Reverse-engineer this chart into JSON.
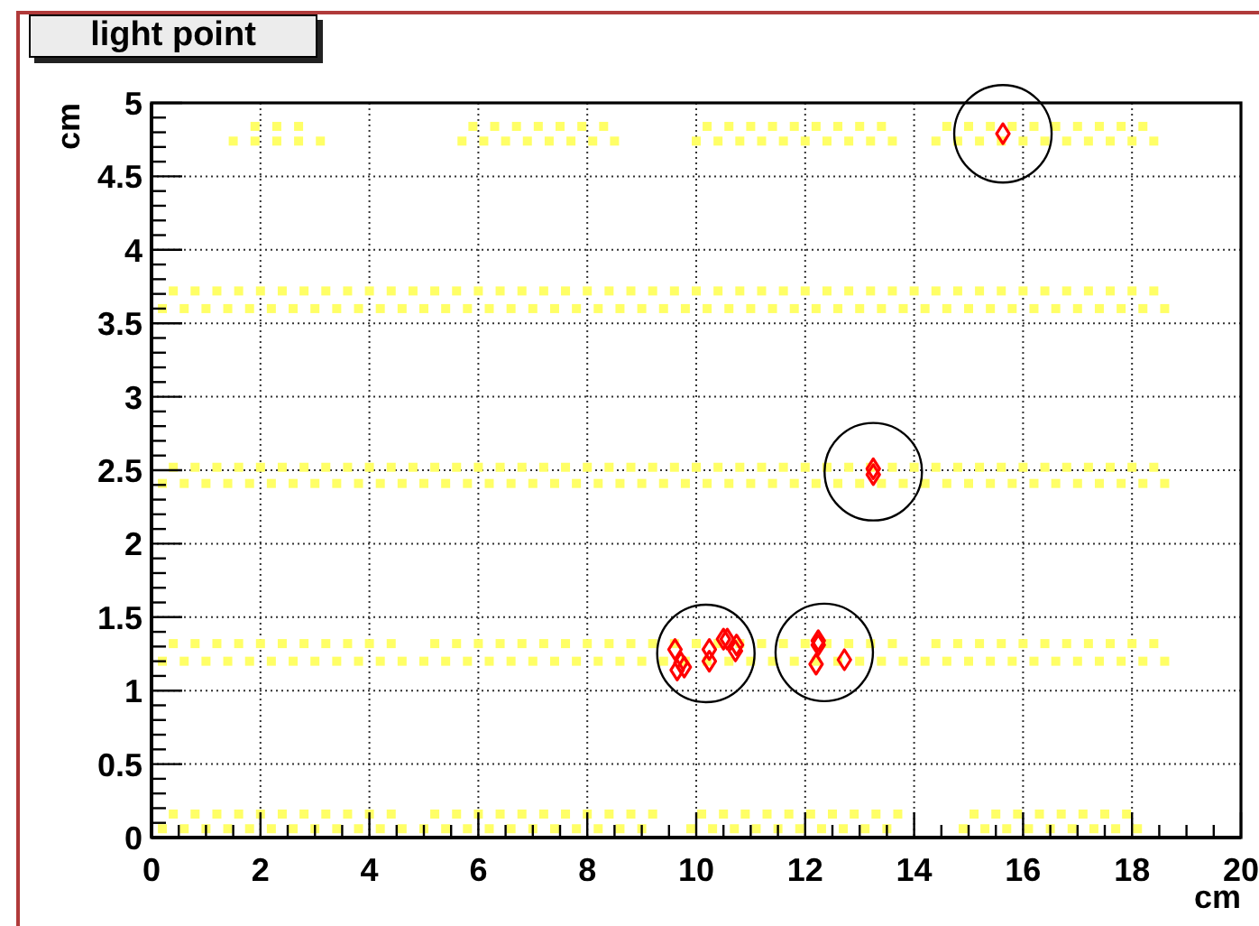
{
  "chart_data": {
    "type": "scatter",
    "title": "light point",
    "xlabel": "cm",
    "ylabel": "cm",
    "xlim": [
      0,
      20
    ],
    "ylim": [
      0,
      5
    ],
    "xticks": [
      0,
      {
        "value": 0.5,
        "label": null
      },
      {
        "value": 1,
        "label": null
      },
      {
        "value": 1.5,
        "label": null
      },
      2,
      {
        "value": 2.5,
        "label": null
      },
      {
        "value": 3,
        "label": null
      },
      {
        "value": 3.5,
        "label": null
      },
      4,
      {
        "value": 4.5,
        "label": null
      },
      {
        "value": 5,
        "label": null
      },
      {
        "value": 5.5,
        "label": null
      },
      6,
      {
        "value": 6.5,
        "label": null
      },
      {
        "value": 7,
        "label": null
      },
      {
        "value": 7.5,
        "label": null
      },
      8,
      {
        "value": 8.5,
        "label": null
      },
      {
        "value": 9,
        "label": null
      },
      {
        "value": 9.5,
        "label": null
      },
      10,
      {
        "value": 10.5,
        "label": null
      },
      {
        "value": 11,
        "label": null
      },
      {
        "value": 11.5,
        "label": null
      },
      12,
      {
        "value": 12.5,
        "label": null
      },
      {
        "value": 13,
        "label": null
      },
      {
        "value": 13.5,
        "label": null
      },
      14,
      {
        "value": 14.5,
        "label": null
      },
      {
        "value": 15,
        "label": null
      },
      {
        "value": 15.5,
        "label": null
      },
      16,
      {
        "value": 16.5,
        "label": null
      },
      {
        "value": 17,
        "label": null
      },
      {
        "value": 17.5,
        "label": null
      },
      18,
      {
        "value": 18.5,
        "label": null
      },
      {
        "value": 19,
        "label": null
      },
      {
        "value": 19.5,
        "label": null
      },
      20
    ],
    "yticks": [
      0,
      {
        "value": 0.1,
        "label": null
      },
      {
        "value": 0.2,
        "label": null
      },
      {
        "value": 0.3,
        "label": null
      },
      {
        "value": 0.4,
        "label": null
      },
      0.5,
      {
        "value": 0.6,
        "label": null
      },
      {
        "value": 0.7,
        "label": null
      },
      {
        "value": 0.8,
        "label": null
      },
      {
        "value": 0.9,
        "label": null
      },
      1,
      {
        "value": 1.1,
        "label": null
      },
      {
        "value": 1.2,
        "label": null
      },
      {
        "value": 1.3,
        "label": null
      },
      {
        "value": 1.4,
        "label": null
      },
      1.5,
      {
        "value": 1.6,
        "label": null
      },
      {
        "value": 1.7,
        "label": null
      },
      {
        "value": 1.8,
        "label": null
      },
      {
        "value": 1.9,
        "label": null
      },
      2,
      {
        "value": 2.1,
        "label": null
      },
      {
        "value": 2.2,
        "label": null
      },
      {
        "value": 2.3,
        "label": null
      },
      {
        "value": 2.4,
        "label": null
      },
      2.5,
      {
        "value": 2.6,
        "label": null
      },
      {
        "value": 2.7,
        "label": null
      },
      {
        "value": 2.8,
        "label": null
      },
      {
        "value": 2.9,
        "label": null
      },
      3,
      {
        "value": 3.1,
        "label": null
      },
      {
        "value": 3.2,
        "label": null
      },
      {
        "value": 3.3,
        "label": null
      },
      {
        "value": 3.4,
        "label": null
      },
      3.5,
      {
        "value": 3.6,
        "label": null
      },
      {
        "value": 3.7,
        "label": null
      },
      {
        "value": 3.8,
        "label": null
      },
      {
        "value": 3.9,
        "label": null
      },
      4,
      {
        "value": 4.1,
        "label": null
      },
      {
        "value": 4.2,
        "label": null
      },
      {
        "value": 4.3,
        "label": null
      },
      {
        "value": 4.4,
        "label": null
      },
      4.5,
      {
        "value": 4.6,
        "label": null
      },
      {
        "value": 4.7,
        "label": null
      },
      {
        "value": 4.8,
        "label": null
      },
      {
        "value": 4.9,
        "label": null
      },
      5
    ],
    "grid": true,
    "series": [
      {
        "color": "#ffff66",
        "marker": "square",
        "x": [
          0.2,
          0.6,
          1,
          1.4,
          1.8,
          2.2,
          2.6,
          3,
          3.4,
          3.8,
          4.2,
          4.6,
          5,
          5.4,
          5.8,
          6.2,
          6.6,
          7,
          7.4,
          7.8,
          8.2,
          8.6,
          9,
          9.9,
          10.3,
          10.7,
          11.1,
          11.5,
          11.9,
          12.3,
          12.7,
          13.1,
          13.5,
          14.9,
          15.3,
          15.7,
          16.1,
          16.5,
          16.9,
          17.3,
          17.7,
          18.1,
          0.4,
          0.8,
          1.2,
          1.6,
          2,
          2.4,
          2.8,
          3.2,
          3.6,
          4,
          4.4,
          5.2,
          5.6,
          6,
          6.4,
          6.8,
          7.2,
          7.6,
          8,
          8.4,
          8.8,
          9.2,
          10.1,
          10.5,
          10.9,
          11.3,
          11.7,
          12.1,
          12.5,
          12.9,
          13.3,
          13.7,
          15.1,
          15.5,
          15.9,
          16.3,
          16.7,
          17.1,
          17.5,
          17.9
        ],
        "values": [
          0.06,
          0.06,
          0.06,
          0.06,
          0.06,
          0.06,
          0.06,
          0.06,
          0.06,
          0.06,
          0.06,
          0.06,
          0.06,
          0.06,
          0.06,
          0.06,
          0.06,
          0.06,
          0.06,
          0.06,
          0.06,
          0.06,
          0.06,
          0.06,
          0.06,
          0.06,
          0.06,
          0.06,
          0.06,
          0.06,
          0.06,
          0.06,
          0.06,
          0.06,
          0.06,
          0.06,
          0.06,
          0.06,
          0.06,
          0.06,
          0.06,
          0.06,
          0.16,
          0.16,
          0.16,
          0.16,
          0.16,
          0.16,
          0.16,
          0.16,
          0.16,
          0.16,
          0.16,
          0.16,
          0.16,
          0.16,
          0.16,
          0.16,
          0.16,
          0.16,
          0.16,
          0.16,
          0.16,
          0.16,
          0.16,
          0.16,
          0.16,
          0.16,
          0.16,
          0.16,
          0.16,
          0.16,
          0.16,
          0.16,
          0.16,
          0.16,
          0.16,
          0.16,
          0.16,
          0.16,
          0.16,
          0.16
        ]
      },
      {
        "color": "#ffff66",
        "marker": "square",
        "x": [
          0.2,
          0.6,
          1,
          1.4,
          1.8,
          2.2,
          2.6,
          3,
          3.4,
          3.8,
          4.2,
          4.6,
          5,
          5.4,
          5.8,
          6.2,
          6.6,
          7,
          7.4,
          7.8,
          8.2,
          8.6,
          9,
          9.4,
          9.8,
          10.2,
          10.6,
          11,
          11.4,
          11.8,
          12.2,
          12.6,
          13,
          13.4,
          13.8,
          14.2,
          14.6,
          15,
          15.4,
          15.8,
          16.2,
          16.6,
          17,
          17.4,
          17.8,
          18.2,
          18.6,
          0.4,
          0.8,
          1.2,
          1.6,
          2,
          2.4,
          2.8,
          3.2,
          3.6,
          4,
          4.4,
          5.2,
          5.6,
          6,
          6.4,
          6.8,
          7.2,
          7.6,
          8,
          8.4,
          8.8,
          9.2,
          9.6,
          10,
          10.4,
          10.8,
          11.2,
          11.6,
          12,
          12.4,
          12.8,
          13.2,
          13.6,
          14.4,
          14.8,
          15.2,
          15.6,
          16,
          16.4,
          16.8,
          17.2,
          17.6,
          18,
          18.4
        ],
        "values": [
          1.2,
          1.2,
          1.2,
          1.2,
          1.2,
          1.2,
          1.2,
          1.2,
          1.2,
          1.2,
          1.2,
          1.2,
          1.2,
          1.2,
          1.2,
          1.2,
          1.2,
          1.2,
          1.2,
          1.2,
          1.2,
          1.2,
          1.2,
          1.2,
          1.2,
          1.2,
          1.2,
          1.2,
          1.2,
          1.2,
          1.2,
          1.2,
          1.2,
          1.2,
          1.2,
          1.2,
          1.2,
          1.2,
          1.2,
          1.2,
          1.2,
          1.2,
          1.2,
          1.2,
          1.2,
          1.2,
          1.2,
          1.32,
          1.32,
          1.32,
          1.32,
          1.32,
          1.32,
          1.32,
          1.32,
          1.32,
          1.32,
          1.32,
          1.32,
          1.32,
          1.32,
          1.32,
          1.32,
          1.32,
          1.32,
          1.32,
          1.32,
          1.32,
          1.32,
          1.32,
          1.32,
          1.32,
          1.32,
          1.32,
          1.32,
          1.32,
          1.32,
          1.32,
          1.32,
          1.32,
          1.32,
          1.32,
          1.32,
          1.32,
          1.32,
          1.32,
          1.32,
          1.32,
          1.32,
          1.32,
          1.32
        ]
      },
      {
        "color": "#ffff66",
        "marker": "square",
        "x": [
          0.2,
          0.6,
          1,
          1.4,
          1.8,
          2.2,
          2.6,
          3,
          3.4,
          3.8,
          4.2,
          4.6,
          5,
          5.4,
          5.8,
          6.2,
          6.6,
          7,
          7.4,
          7.8,
          8.2,
          8.6,
          9,
          9.4,
          9.8,
          10.2,
          10.6,
          11,
          11.4,
          11.8,
          12.2,
          12.6,
          13,
          13.4,
          13.8,
          14.2,
          14.6,
          15,
          15.4,
          15.8,
          16.2,
          16.6,
          17,
          17.4,
          17.8,
          18.2,
          18.6,
          0.4,
          0.8,
          1.2,
          1.6,
          2,
          2.4,
          2.8,
          3.2,
          3.6,
          4,
          4.4,
          4.8,
          5.2,
          5.6,
          6,
          6.4,
          6.8,
          7.2,
          7.6,
          8,
          8.4,
          8.8,
          9.2,
          9.6,
          10,
          10.4,
          10.8,
          11.2,
          11.6,
          12,
          12.4,
          12.8,
          13.2,
          13.6,
          14,
          14.4,
          14.8,
          15.2,
          15.6,
          16,
          16.4,
          16.8,
          17.2,
          17.6,
          18,
          18.4
        ],
        "values": [
          2.41,
          2.41,
          2.41,
          2.41,
          2.41,
          2.41,
          2.41,
          2.41,
          2.41,
          2.41,
          2.41,
          2.41,
          2.41,
          2.41,
          2.41,
          2.41,
          2.41,
          2.41,
          2.41,
          2.41,
          2.41,
          2.41,
          2.41,
          2.41,
          2.41,
          2.41,
          2.41,
          2.41,
          2.41,
          2.41,
          2.41,
          2.41,
          2.41,
          2.41,
          2.41,
          2.41,
          2.41,
          2.41,
          2.41,
          2.41,
          2.41,
          2.41,
          2.41,
          2.41,
          2.41,
          2.41,
          2.41,
          2.52,
          2.52,
          2.52,
          2.52,
          2.52,
          2.52,
          2.52,
          2.52,
          2.52,
          2.52,
          2.52,
          2.52,
          2.52,
          2.52,
          2.52,
          2.52,
          2.52,
          2.52,
          2.52,
          2.52,
          2.52,
          2.52,
          2.52,
          2.52,
          2.52,
          2.52,
          2.52,
          2.52,
          2.52,
          2.52,
          2.52,
          2.52,
          2.52,
          2.52,
          2.52,
          2.52,
          2.52,
          2.52,
          2.52,
          2.52,
          2.52,
          2.52,
          2.52,
          2.52,
          2.52,
          2.52
        ]
      },
      {
        "color": "#ffff66",
        "marker": "square",
        "x": [
          0.2,
          0.6,
          1,
          1.4,
          1.8,
          2.2,
          2.6,
          3,
          3.4,
          3.8,
          4.2,
          4.6,
          5,
          5.4,
          5.8,
          6.2,
          6.6,
          7,
          7.4,
          7.8,
          8.2,
          8.6,
          9,
          9.4,
          9.8,
          10.2,
          10.6,
          11,
          11.4,
          11.8,
          12.2,
          12.6,
          13,
          13.4,
          13.8,
          14.2,
          14.6,
          15,
          15.4,
          15.8,
          16.2,
          16.6,
          17,
          17.4,
          17.8,
          18.2,
          18.6,
          0.4,
          0.8,
          1.2,
          1.6,
          2,
          2.4,
          2.8,
          3.2,
          3.6,
          4,
          4.4,
          4.8,
          5.2,
          5.6,
          6,
          6.4,
          6.8,
          7.2,
          7.6,
          8,
          8.4,
          8.8,
          9.2,
          9.6,
          10,
          10.4,
          10.8,
          11.2,
          11.6,
          12,
          12.4,
          12.8,
          13.2,
          13.6,
          14,
          14.4,
          14.8,
          15.2,
          15.6,
          16,
          16.4,
          16.8,
          17.2,
          17.6,
          18,
          18.4
        ],
        "values": [
          3.6,
          3.6,
          3.6,
          3.6,
          3.6,
          3.6,
          3.6,
          3.6,
          3.6,
          3.6,
          3.6,
          3.6,
          3.6,
          3.6,
          3.6,
          3.6,
          3.6,
          3.6,
          3.6,
          3.6,
          3.6,
          3.6,
          3.6,
          3.6,
          3.6,
          3.6,
          3.6,
          3.6,
          3.6,
          3.6,
          3.6,
          3.6,
          3.6,
          3.6,
          3.6,
          3.6,
          3.6,
          3.6,
          3.6,
          3.6,
          3.6,
          3.6,
          3.6,
          3.6,
          3.6,
          3.6,
          3.6,
          3.72,
          3.72,
          3.72,
          3.72,
          3.72,
          3.72,
          3.72,
          3.72,
          3.72,
          3.72,
          3.72,
          3.72,
          3.72,
          3.72,
          3.72,
          3.72,
          3.72,
          3.72,
          3.72,
          3.72,
          3.72,
          3.72,
          3.72,
          3.72,
          3.72,
          3.72,
          3.72,
          3.72,
          3.72,
          3.72,
          3.72,
          3.72,
          3.72,
          3.72,
          3.72,
          3.72,
          3.72,
          3.72,
          3.72,
          3.72,
          3.72,
          3.72,
          3.72,
          3.72,
          3.72,
          3.72
        ]
      },
      {
        "color": "#ffff66",
        "marker": "square",
        "x": [
          1.5,
          1.9,
          2.3,
          2.7,
          3.1,
          5.7,
          6.1,
          6.5,
          6.9,
          7.3,
          7.7,
          8.1,
          8.5,
          10,
          10.4,
          10.8,
          11.2,
          11.6,
          12,
          12.4,
          12.8,
          13.2,
          13.6,
          14.4,
          14.8,
          15.2,
          15.6,
          16,
          16.4,
          16.8,
          17.2,
          17.6,
          18,
          18.4,
          1.9,
          2.3,
          2.7,
          5.9,
          6.3,
          6.7,
          7.1,
          7.5,
          7.9,
          8.3,
          10.2,
          10.6,
          11,
          11.4,
          11.8,
          12.2,
          12.6,
          13,
          13.4,
          14.6,
          15,
          15.4,
          15.8,
          16.2,
          16.6,
          17,
          17.4,
          17.8,
          18.2
        ],
        "values": [
          4.74,
          4.74,
          4.74,
          4.74,
          4.74,
          4.74,
          4.74,
          4.74,
          4.74,
          4.74,
          4.74,
          4.74,
          4.74,
          4.74,
          4.74,
          4.74,
          4.74,
          4.74,
          4.74,
          4.74,
          4.74,
          4.74,
          4.74,
          4.74,
          4.74,
          4.74,
          4.74,
          4.74,
          4.74,
          4.74,
          4.74,
          4.74,
          4.74,
          4.74,
          4.84,
          4.84,
          4.84,
          4.84,
          4.84,
          4.84,
          4.84,
          4.84,
          4.84,
          4.84,
          4.84,
          4.84,
          4.84,
          4.84,
          4.84,
          4.84,
          4.84,
          4.84,
          4.84,
          4.84,
          4.84,
          4.84,
          4.84,
          4.84,
          4.84,
          4.84,
          4.84,
          4.84,
          4.84
        ]
      },
      {
        "color": "#ff0000",
        "marker": "diamond",
        "x": [
          9.61,
          9.72,
          9.78,
          9.65,
          10.24,
          10.24,
          10.5,
          10.57,
          10.74,
          10.72
        ],
        "values": [
          1.28,
          1.19,
          1.16,
          1.14,
          1.28,
          1.2,
          1.35,
          1.35,
          1.31,
          1.27
        ]
      },
      {
        "color": "#ff0000",
        "marker": "diamond",
        "x": [
          12.24,
          12.24,
          12.2,
          12.72
        ],
        "values": [
          1.34,
          1.31,
          1.18,
          1.21
        ]
      },
      {
        "color": "#ff0000",
        "marker": "diamond",
        "x": [
          13.25,
          13.25
        ],
        "values": [
          2.51,
          2.47
        ]
      },
      {
        "color": "#ff0000",
        "marker": "diamond",
        "x": [
          15.63
        ],
        "values": [
          4.79
        ]
      }
    ]
  }
}
